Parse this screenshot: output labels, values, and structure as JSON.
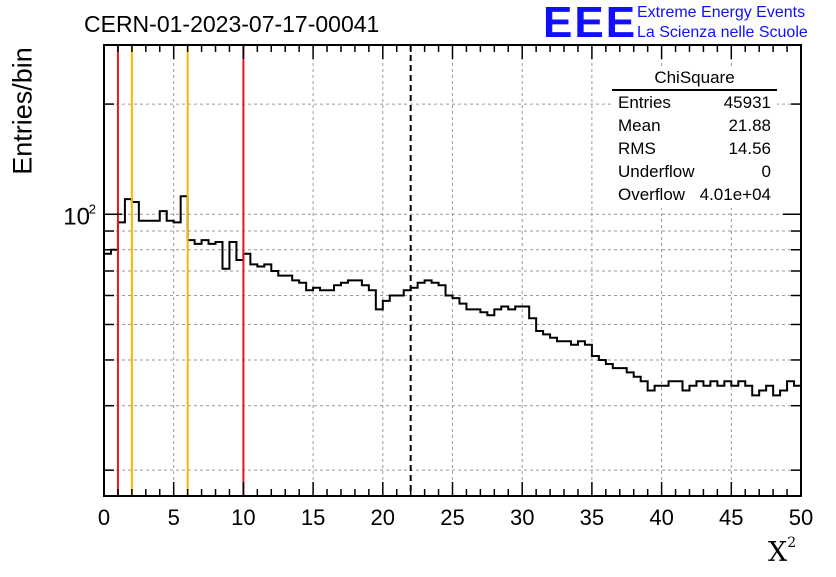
{
  "header": {
    "run_title": "CERN-01-2023-07-17-00041",
    "logo_text": "EEE",
    "logo_line1": "Extreme Energy Events",
    "logo_line2": "La Scienza nelle Scuole",
    "logo_color": "#1010ff"
  },
  "stats_box": {
    "title": "ChiSquare",
    "rows": [
      {
        "key": "Entries",
        "value": "45931"
      },
      {
        "key": "Mean",
        "value": "21.88"
      },
      {
        "key": "RMS",
        "value": "14.56"
      },
      {
        "key": "Underflow",
        "value": "0"
      },
      {
        "key": "Overflow",
        "value": "4.01e+04"
      }
    ]
  },
  "chart_data": {
    "type": "histogram",
    "title": "CERN-01-2023-07-17-00041",
    "xlabel": "X",
    "xlabel_superscript": "2",
    "ylabel": "Entries/bin",
    "xlim": [
      0,
      50
    ],
    "ylim": [
      17,
      290
    ],
    "y_scale": "log",
    "grid": true,
    "legend": "none",
    "x_ticks": [
      "0",
      "5",
      "10",
      "15",
      "20",
      "25",
      "30",
      "35",
      "40",
      "45",
      "50"
    ],
    "y_tick_labels": [
      {
        "value": 100,
        "label": "10",
        "superscript": "2"
      }
    ],
    "bin_width": 0.5,
    "bin_counts": [
      78,
      80,
      95,
      110,
      108,
      96,
      96,
      96,
      102,
      96,
      95,
      112,
      85,
      83,
      85,
      83,
      84,
      71,
      84,
      75,
      78,
      73,
      72,
      73,
      70,
      68,
      68,
      66,
      65,
      62,
      63,
      62,
      62,
      64,
      65,
      66,
      66,
      64,
      62,
      55,
      58,
      60,
      60,
      62,
      63,
      65,
      66,
      65,
      64,
      60,
      59,
      57,
      55,
      55,
      54,
      53,
      55,
      56,
      55,
      56,
      56,
      52,
      48,
      47,
      46,
      45,
      45,
      44,
      45,
      44,
      41,
      40,
      39,
      38,
      38,
      37,
      36,
      35,
      33,
      34,
      34,
      35,
      35,
      33,
      34,
      35,
      34,
      35,
      34,
      35,
      34,
      35,
      34,
      32,
      33,
      34,
      32,
      33,
      35,
      34
    ],
    "vertical_lines": [
      {
        "x": 1,
        "color": "#e31a1c",
        "style": "solid"
      },
      {
        "x": 2,
        "color": "#f5b800",
        "style": "solid"
      },
      {
        "x": 6,
        "color": "#f5b800",
        "style": "solid"
      },
      {
        "x": 10,
        "color": "#e31a1c",
        "style": "solid"
      },
      {
        "x": 22,
        "color": "#000000",
        "style": "dashed"
      }
    ]
  }
}
